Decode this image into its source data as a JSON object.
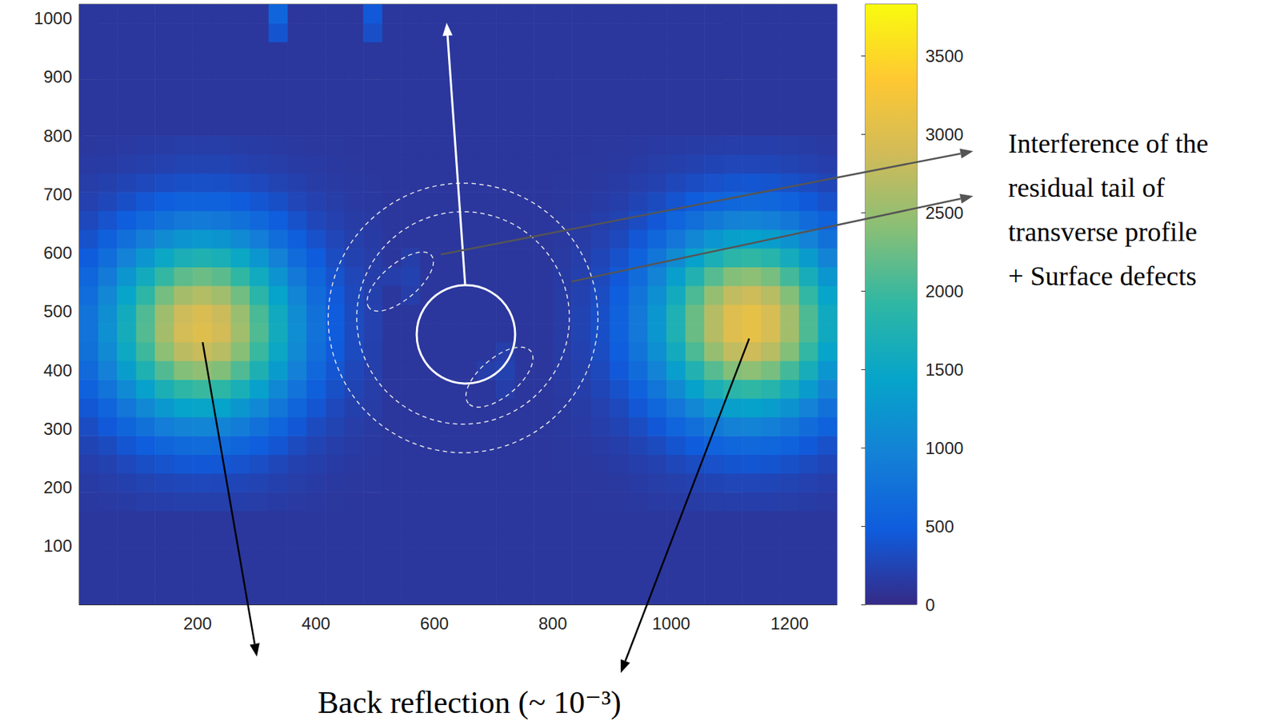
{
  "chart_data": {
    "type": "heatmap",
    "x": [
      16,
      48,
      80,
      112,
      144,
      176,
      208,
      240,
      272,
      304,
      336,
      368,
      400,
      432,
      464,
      496,
      528,
      560,
      592,
      624,
      656,
      688,
      720,
      752,
      784,
      816,
      848,
      880,
      912,
      944,
      976,
      1008,
      1040,
      1072,
      1104,
      1136,
      1168,
      1200,
      1232,
      1264
    ],
    "y": [
      16,
      48,
      80,
      112,
      144,
      176,
      208,
      240,
      272,
      304,
      336,
      368,
      400,
      432,
      464,
      496,
      528,
      560,
      592,
      624,
      656,
      688,
      720,
      752,
      784,
      816,
      848,
      880,
      912,
      944,
      976,
      1008
    ],
    "z": [
      [
        120,
        120,
        120,
        120,
        120,
        120,
        120,
        120,
        120,
        120,
        120,
        120,
        120,
        120,
        120,
        120,
        120,
        120,
        120,
        120,
        120,
        120,
        120,
        120,
        120,
        120,
        120,
        120,
        120,
        120,
        120,
        120,
        120,
        120,
        120,
        120,
        120,
        120,
        120,
        120
      ],
      [
        120,
        120,
        120,
        120,
        120,
        120,
        120,
        120,
        120,
        120,
        120,
        120,
        120,
        120,
        120,
        120,
        120,
        120,
        120,
        120,
        120,
        120,
        120,
        120,
        120,
        120,
        120,
        120,
        120,
        120,
        120,
        120,
        120,
        120,
        120,
        120,
        120,
        120,
        120,
        120
      ],
      [
        120,
        120,
        120,
        120,
        120,
        120,
        120,
        120,
        120,
        120,
        120,
        120,
        120,
        120,
        120,
        120,
        120,
        120,
        120,
        120,
        120,
        120,
        120,
        120,
        120,
        120,
        120,
        120,
        120,
        120,
        120,
        120,
        120,
        120,
        120,
        120,
        120,
        120,
        120,
        120
      ],
      [
        120,
        120,
        120,
        120,
        120,
        120,
        120,
        120,
        120,
        120,
        120,
        120,
        120,
        120,
        120,
        120,
        120,
        120,
        120,
        120,
        120,
        120,
        120,
        120,
        120,
        120,
        120,
        120,
        120,
        120,
        120,
        120,
        120,
        120,
        120,
        120,
        120,
        120,
        120,
        120
      ],
      [
        120,
        120,
        120,
        120,
        120,
        120,
        120,
        120,
        120,
        120,
        120,
        120,
        120,
        120,
        120,
        120,
        120,
        120,
        120,
        120,
        120,
        120,
        120,
        120,
        120,
        120,
        120,
        120,
        120,
        120,
        120,
        120,
        120,
        120,
        120,
        120,
        120,
        120,
        120,
        120
      ],
      [
        140,
        150,
        160,
        180,
        190,
        200,
        200,
        200,
        190,
        180,
        160,
        150,
        140,
        130,
        120,
        120,
        120,
        120,
        120,
        120,
        120,
        120,
        120,
        120,
        120,
        120,
        120,
        130,
        130,
        140,
        150,
        160,
        170,
        180,
        190,
        190,
        190,
        180,
        170,
        150
      ],
      [
        160,
        180,
        210,
        240,
        260,
        280,
        290,
        280,
        260,
        240,
        210,
        180,
        160,
        140,
        130,
        130,
        120,
        120,
        120,
        120,
        120,
        120,
        120,
        120,
        120,
        120,
        130,
        130,
        140,
        160,
        180,
        200,
        230,
        250,
        270,
        270,
        260,
        240,
        220,
        190
      ],
      [
        190,
        230,
        290,
        340,
        390,
        430,
        440,
        430,
        390,
        340,
        280,
        230,
        190,
        160,
        140,
        130,
        120,
        120,
        120,
        120,
        120,
        120,
        120,
        120,
        120,
        130,
        130,
        140,
        160,
        190,
        230,
        280,
        330,
        370,
        400,
        410,
        400,
        360,
        310,
        260
      ],
      [
        250,
        320,
        410,
        510,
        600,
        660,
        680,
        660,
        590,
        500,
        410,
        320,
        240,
        190,
        160,
        140,
        120,
        120,
        120,
        120,
        120,
        120,
        120,
        120,
        120,
        130,
        140,
        160,
        190,
        250,
        320,
        400,
        490,
        570,
        620,
        640,
        610,
        550,
        460,
        370
      ],
      [
        330,
        450,
        590,
        750,
        900,
        1000,
        1030,
        990,
        890,
        740,
        580,
        440,
        320,
        240,
        180,
        150,
        120,
        120,
        120,
        120,
        120,
        120,
        120,
        120,
        120,
        140,
        150,
        190,
        240,
        330,
        440,
        580,
        730,
        860,
        950,
        980,
        930,
        830,
        690,
        540
      ],
      [
        430,
        600,
        820,
        1060,
        1270,
        1420,
        1470,
        1420,
        1260,
        1050,
        810,
        590,
        420,
        290,
        210,
        170,
        120,
        120,
        120,
        120,
        120,
        120,
        120,
        120,
        120,
        140,
        170,
        220,
        300,
        430,
        610,
        820,
        1040,
        1240,
        1380,
        1410,
        1340,
        1190,
        970,
        750
      ],
      [
        540,
        780,
        1080,
        1400,
        1700,
        1900,
        1970,
        1890,
        1680,
        1390,
        1060,
        770,
        530,
        360,
        250,
        180,
        120,
        120,
        120,
        120,
        120,
        120,
        190,
        120,
        120,
        150,
        190,
        260,
        380,
        560,
        800,
        1100,
        1410,
        1690,
        1870,
        1920,
        1830,
        1610,
        1310,
        1000
      ],
      [
        650,
        960,
        1340,
        1740,
        2110,
        2370,
        2460,
        2360,
        2090,
        1720,
        1310,
        940,
        630,
        420,
        280,
        200,
        120,
        120,
        120,
        120,
        120,
        190,
        230,
        120,
        120,
        160,
        210,
        300,
        450,
        680,
        990,
        1370,
        1770,
        2130,
        2370,
        2430,
        2310,
        2030,
        1650,
        1250
      ],
      [
        740,
        1090,
        1530,
        2000,
        2430,
        2730,
        2830,
        2710,
        2400,
        1970,
        1500,
        1070,
        720,
        470,
        310,
        210,
        120,
        120,
        120,
        120,
        120,
        120,
        190,
        120,
        120,
        170,
        230,
        330,
        510,
        780,
        1150,
        1600,
        2070,
        2490,
        2770,
        2850,
        2710,
        2370,
        1930,
        1450
      ],
      [
        780,
        1160,
        1620,
        2120,
        2580,
        2900,
        3010,
        2890,
        2560,
        2100,
        1590,
        1130,
        760,
        490,
        320,
        220,
        120,
        120,
        120,
        120,
        120,
        120,
        120,
        120,
        120,
        170,
        240,
        350,
        550,
        840,
        1240,
        1730,
        2240,
        2700,
        3000,
        3090,
        2930,
        2570,
        2080,
        1570
      ],
      [
        770,
        1140,
        1600,
        2090,
        2540,
        2850,
        2960,
        2840,
        2510,
        2060,
        1570,
        1110,
        740,
        480,
        320,
        220,
        120,
        120,
        120,
        120,
        120,
        120,
        120,
        120,
        120,
        170,
        240,
        350,
        550,
        840,
        1240,
        1730,
        2240,
        2700,
        3000,
        3090,
        2930,
        2570,
        2080,
        1570
      ],
      [
        700,
        1040,
        1450,
        1900,
        2300,
        2590,
        2680,
        2570,
        2280,
        1870,
        1420,
        1010,
        680,
        450,
        300,
        210,
        120,
        190,
        120,
        120,
        120,
        120,
        120,
        120,
        120,
        170,
        230,
        330,
        510,
        780,
        1150,
        1600,
        2070,
        2490,
        2770,
        2850,
        2710,
        2370,
        1930,
        1450
      ],
      [
        610,
        880,
        1230,
        1600,
        1940,
        2170,
        2250,
        2160,
        1920,
        1580,
        1210,
        860,
        590,
        390,
        270,
        190,
        190,
        230,
        120,
        120,
        120,
        120,
        120,
        120,
        120,
        160,
        210,
        300,
        450,
        680,
        990,
        1370,
        1770,
        2130,
        2370,
        2430,
        2310,
        2030,
        1650,
        1250
      ],
      [
        490,
        700,
        970,
        1250,
        1510,
        1690,
        1750,
        1680,
        1500,
        1240,
        950,
        690,
        480,
        330,
        230,
        180,
        120,
        190,
        120,
        120,
        120,
        120,
        120,
        120,
        120,
        150,
        190,
        260,
        380,
        560,
        800,
        1100,
        1410,
        1690,
        1870,
        1920,
        1830,
        1610,
        1310,
        1000
      ],
      [
        380,
        530,
        720,
        920,
        1100,
        1220,
        1270,
        1220,
        1090,
        900,
        700,
        520,
        370,
        270,
        200,
        160,
        120,
        120,
        120,
        120,
        120,
        120,
        120,
        120,
        120,
        140,
        170,
        220,
        300,
        430,
        610,
        820,
        1040,
        1240,
        1380,
        1410,
        1340,
        1190,
        970,
        750
      ],
      [
        290,
        390,
        510,
        640,
        750,
        840,
        870,
        830,
        750,
        630,
        500,
        380,
        280,
        220,
        170,
        150,
        120,
        120,
        120,
        120,
        120,
        120,
        120,
        120,
        120,
        140,
        150,
        190,
        240,
        330,
        440,
        580,
        730,
        860,
        950,
        980,
        930,
        830,
        690,
        540
      ],
      [
        220,
        280,
        350,
        430,
        500,
        550,
        560,
        540,
        490,
        420,
        350,
        270,
        220,
        180,
        150,
        140,
        120,
        120,
        120,
        120,
        120,
        120,
        120,
        120,
        120,
        130,
        140,
        160,
        190,
        250,
        320,
        400,
        490,
        570,
        620,
        640,
        610,
        550,
        460,
        370
      ],
      [
        180,
        210,
        250,
        290,
        330,
        350,
        360,
        350,
        330,
        290,
        240,
        210,
        170,
        150,
        140,
        130,
        120,
        120,
        120,
        120,
        120,
        120,
        120,
        120,
        120,
        130,
        130,
        140,
        160,
        190,
        230,
        280,
        330,
        370,
        400,
        410,
        400,
        360,
        310,
        260
      ],
      [
        150,
        160,
        180,
        200,
        220,
        240,
        240,
        240,
        220,
        200,
        180,
        160,
        150,
        140,
        130,
        120,
        120,
        120,
        120,
        120,
        120,
        120,
        120,
        120,
        120,
        120,
        130,
        130,
        140,
        160,
        180,
        200,
        230,
        250,
        270,
        270,
        260,
        240,
        220,
        190
      ],
      [
        130,
        140,
        150,
        160,
        170,
        180,
        180,
        180,
        170,
        160,
        150,
        140,
        130,
        130,
        120,
        120,
        120,
        120,
        120,
        120,
        120,
        120,
        120,
        120,
        120,
        120,
        120,
        130,
        130,
        140,
        150,
        160,
        170,
        180,
        190,
        190,
        190,
        180,
        170,
        150
      ],
      [
        120,
        120,
        120,
        120,
        120,
        120,
        120,
        120,
        120,
        120,
        120,
        120,
        120,
        120,
        120,
        120,
        120,
        120,
        120,
        120,
        120,
        120,
        120,
        120,
        120,
        120,
        120,
        120,
        120,
        120,
        120,
        120,
        120,
        120,
        120,
        120,
        120,
        120,
        120,
        120
      ],
      [
        120,
        120,
        120,
        120,
        120,
        120,
        120,
        120,
        120,
        120,
        120,
        120,
        120,
        120,
        120,
        120,
        120,
        120,
        120,
        120,
        120,
        120,
        120,
        120,
        120,
        120,
        120,
        120,
        120,
        120,
        120,
        120,
        120,
        120,
        120,
        120,
        120,
        120,
        120,
        120
      ],
      [
        120,
        120,
        120,
        120,
        120,
        120,
        120,
        120,
        120,
        120,
        120,
        120,
        120,
        120,
        120,
        120,
        120,
        120,
        120,
        120,
        120,
        120,
        120,
        120,
        120,
        120,
        120,
        120,
        120,
        120,
        120,
        120,
        120,
        120,
        120,
        120,
        120,
        120,
        120,
        120
      ],
      [
        120,
        120,
        120,
        120,
        120,
        120,
        120,
        120,
        120,
        120,
        120,
        120,
        120,
        120,
        120,
        120,
        120,
        120,
        120,
        120,
        120,
        120,
        120,
        120,
        120,
        120,
        120,
        120,
        120,
        120,
        120,
        120,
        120,
        120,
        120,
        120,
        120,
        120,
        120,
        120
      ],
      [
        120,
        120,
        120,
        120,
        120,
        120,
        120,
        120,
        120,
        120,
        120,
        120,
        120,
        120,
        120,
        120,
        120,
        120,
        120,
        120,
        120,
        120,
        120,
        120,
        120,
        120,
        120,
        120,
        120,
        120,
        120,
        120,
        120,
        120,
        120,
        120,
        120,
        120,
        120,
        120
      ],
      [
        120,
        120,
        120,
        120,
        120,
        120,
        120,
        120,
        120,
        120,
        400,
        120,
        120,
        120,
        120,
        350,
        120,
        120,
        120,
        120,
        120,
        120,
        120,
        120,
        120,
        120,
        120,
        120,
        120,
        120,
        120,
        120,
        120,
        120,
        120,
        120,
        120,
        120,
        120,
        120
      ],
      [
        120,
        120,
        120,
        120,
        120,
        120,
        120,
        120,
        120,
        120,
        600,
        120,
        120,
        120,
        120,
        450,
        120,
        120,
        120,
        120,
        120,
        120,
        120,
        120,
        120,
        120,
        120,
        120,
        120,
        120,
        120,
        120,
        120,
        120,
        120,
        120,
        120,
        120,
        120,
        120
      ]
    ],
    "xlim": [
      0,
      1280
    ],
    "ylim": [
      0,
      1024
    ],
    "xticks": [
      200,
      400,
      600,
      800,
      1000,
      1200
    ],
    "yticks": [
      100,
      200,
      300,
      400,
      500,
      600,
      700,
      800,
      900,
      1000
    ],
    "colorbar": {
      "range": [
        0,
        3830
      ],
      "ticks": [
        0,
        500,
        1000,
        1500,
        2000,
        2500,
        3000,
        3500
      ]
    },
    "annotations": [
      {
        "text": "Interference of the\nresidual tail of\ntransverse profile\n+ Surface defects"
      },
      {
        "text": "Back reflection (~ 10⁻³)"
      }
    ]
  }
}
